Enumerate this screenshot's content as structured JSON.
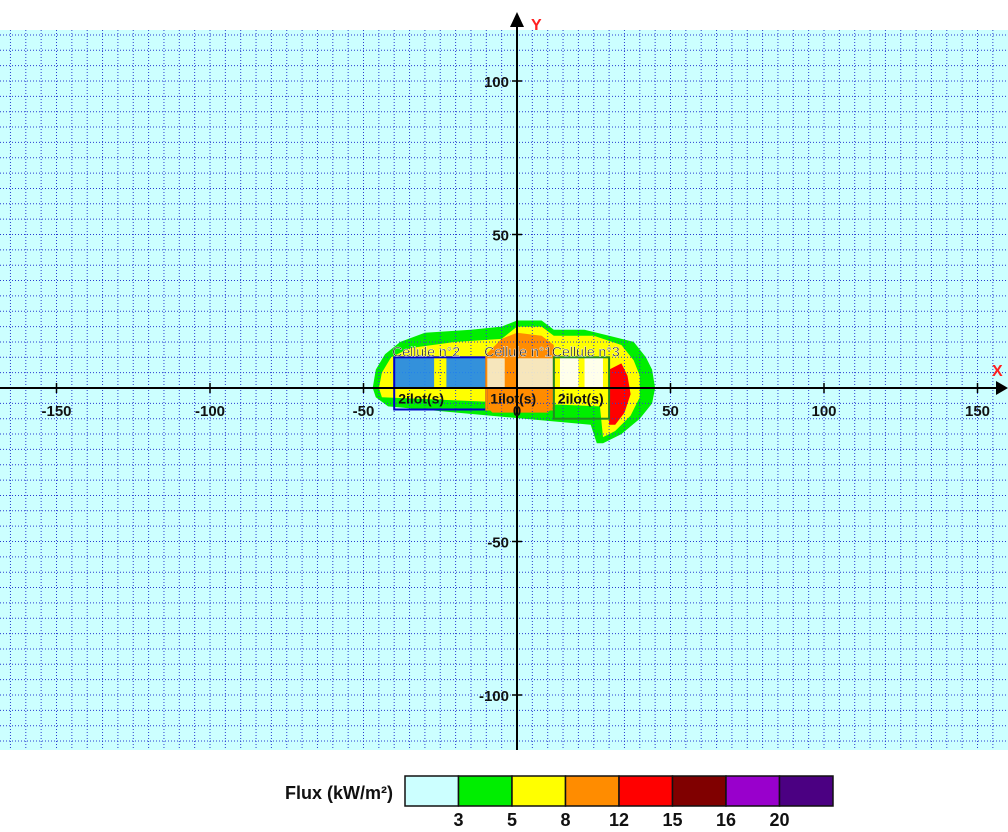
{
  "chart_data": {
    "type": "heatmap",
    "x_axis_label": "X",
    "y_axis_label": "Y",
    "xlim": [
      -168,
      162
    ],
    "ylim": [
      -122,
      128
    ],
    "grid": true,
    "grid_step": 5,
    "x_ticks": [
      -150,
      -100,
      -50,
      0,
      50,
      100,
      150
    ],
    "y_ticks": [
      100,
      50,
      -50,
      -100
    ],
    "x_tick_labels": [
      "-150",
      "-100",
      "-50",
      "0",
      "50",
      "100",
      "150"
    ],
    "y_tick_labels": [
      "100",
      "50",
      "-50",
      "-100"
    ],
    "legend": {
      "title": "Flux (kW/m²)",
      "position": "bottom-center",
      "thresholds": [
        "3",
        "5",
        "8",
        "12",
        "15",
        "16",
        "20"
      ],
      "colors": [
        "#ccffff",
        "#00ee00",
        "#ffff00",
        "#ff8c00",
        "#ff0000",
        "#800000",
        "#9900cc",
        "#4b0082"
      ]
    },
    "background_color": "#ccffff",
    "flux_zones": [
      {
        "level": "3",
        "color": "#00ee00",
        "polygon": [
          [
            -47,
            0
          ],
          [
            -46,
            6
          ],
          [
            -43,
            11
          ],
          [
            -38,
            15
          ],
          [
            -30,
            18
          ],
          [
            -15,
            19
          ],
          [
            -5,
            20
          ],
          [
            0,
            22
          ],
          [
            8,
            22
          ],
          [
            12,
            19
          ],
          [
            22,
            19
          ],
          [
            30,
            17
          ],
          [
            38,
            15
          ],
          [
            42,
            10
          ],
          [
            44,
            6
          ],
          [
            45,
            0
          ],
          [
            44,
            -5
          ],
          [
            40,
            -10
          ],
          [
            34,
            -15
          ],
          [
            28,
            -18
          ],
          [
            26,
            -18
          ],
          [
            24,
            -12
          ],
          [
            -42,
            -6
          ],
          [
            -46,
            -3
          ]
        ]
      },
      {
        "level": "5",
        "color": "#ffff00",
        "polygon": [
          [
            -45,
            0
          ],
          [
            -44,
            5
          ],
          [
            -41,
            10
          ],
          [
            -35,
            13
          ],
          [
            -20,
            15
          ],
          [
            -5,
            16
          ],
          [
            0,
            20
          ],
          [
            8,
            20
          ],
          [
            12,
            17
          ],
          [
            25,
            17
          ],
          [
            34,
            14
          ],
          [
            38,
            9
          ],
          [
            40,
            4
          ],
          [
            40,
            -3
          ],
          [
            37,
            -9
          ],
          [
            32,
            -14
          ],
          [
            28,
            -16
          ],
          [
            27,
            -6
          ],
          [
            -44,
            -3
          ]
        ]
      },
      {
        "level": "8",
        "color": "#ff8c00",
        "polygon": [
          [
            -10,
            11
          ],
          [
            -10,
            -6
          ],
          [
            -8,
            -8
          ],
          [
            10,
            -8
          ],
          [
            12,
            -6
          ],
          [
            12,
            14
          ],
          [
            8,
            17
          ],
          [
            0,
            18
          ],
          [
            -5,
            16
          ]
        ]
      },
      {
        "level": "12",
        "color": "#ff0000",
        "polygon": [
          [
            34,
            8
          ],
          [
            36,
            4
          ],
          [
            37,
            -2
          ],
          [
            35,
            -8
          ],
          [
            32,
            -12
          ],
          [
            30,
            -12
          ],
          [
            30,
            6
          ]
        ]
      }
    ],
    "cells": [
      {
        "label": "Cellule n°2",
        "sub_label": "2ilot(s)",
        "fill": "#2288ee",
        "border": "#0000cc",
        "x": [
          -40,
          -10
        ],
        "y": [
          -7,
          10
        ],
        "blocks": [
          [
            -40,
            -27
          ],
          [
            -23,
            -10
          ]
        ]
      },
      {
        "label": "Cellule n°1",
        "sub_label": "1ilot(s)",
        "fill": "#f5eecc",
        "border": "#ff8c00",
        "x": [
          -10,
          12
        ],
        "y": [
          -7,
          10
        ],
        "blocks": [
          [
            -10,
            -4
          ],
          [
            0,
            12
          ]
        ]
      },
      {
        "label": "Cellule n°3",
        "sub_label": "2ilot(s)",
        "fill": "#ffffff",
        "border": "#228b22",
        "x": [
          12,
          30
        ],
        "y": [
          -10,
          10
        ],
        "blocks": [
          [
            14,
            20
          ],
          [
            22,
            28
          ]
        ]
      }
    ]
  }
}
